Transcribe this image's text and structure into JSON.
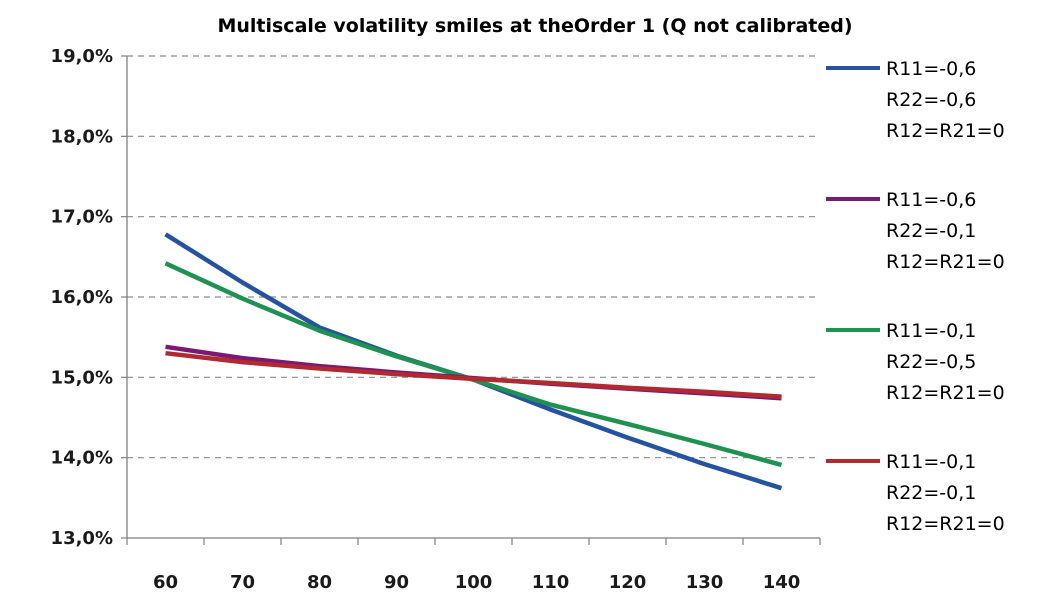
{
  "chart_data": {
    "type": "line",
    "title": "Multiscale volatility smiles at theOrder 1 (Q not calibrated)",
    "xlabel": "",
    "ylabel": "",
    "x": [
      60,
      70,
      80,
      90,
      100,
      110,
      120,
      130,
      140
    ],
    "x_tick_labels": [
      "60",
      "70",
      "80",
      "90",
      "100",
      "110",
      "120",
      "130",
      "140"
    ],
    "xlim": [
      55,
      145
    ],
    "ylim": [
      13.0,
      19.0
    ],
    "y_ticks": [
      13.0,
      14.0,
      15.0,
      16.0,
      17.0,
      18.0,
      19.0
    ],
    "y_tick_labels": [
      "13,0%",
      "14,0%",
      "15,0%",
      "16,0%",
      "17,0%",
      "18,0%",
      "19,0%"
    ],
    "grid": "horizontal dashed",
    "legend_position": "right",
    "series": [
      {
        "name": "R11=-0,6 R22=-0,6 R12=R21=0",
        "legend_lines": [
          "R11=-0,6",
          "R22=-0,6",
          "R12=R21=0"
        ],
        "color": "#2553a0",
        "values": [
          16.78,
          16.18,
          15.62,
          15.27,
          14.97,
          14.6,
          14.25,
          13.92,
          13.62
        ]
      },
      {
        "name": "R11=-0,6 R22=-0,1 R12=R21=0",
        "legend_lines": [
          "R11=-0,6",
          "R22=-0,1",
          "R12=R21=0"
        ],
        "color": "#7b1a74",
        "values": [
          15.38,
          15.24,
          15.14,
          15.06,
          14.99,
          14.92,
          14.86,
          14.8,
          14.74
        ]
      },
      {
        "name": "R11=-0,1 R22=-0,5 R12=R21=0",
        "legend_lines": [
          "R11=-0,1",
          "R22=-0,5",
          "R12=R21=0"
        ],
        "color": "#1f9150",
        "values": [
          16.42,
          15.98,
          15.58,
          15.26,
          14.97,
          14.66,
          14.42,
          14.17,
          13.91
        ]
      },
      {
        "name": "R11=-0,1 R22=-0,1 R12=R21=0",
        "legend_lines": [
          "R11=-0,1",
          "R22=-0,1",
          "R12=R21=0"
        ],
        "color": "#b02a30",
        "values": [
          15.3,
          15.19,
          15.11,
          15.04,
          14.98,
          14.93,
          14.87,
          14.82,
          14.76
        ]
      }
    ]
  }
}
